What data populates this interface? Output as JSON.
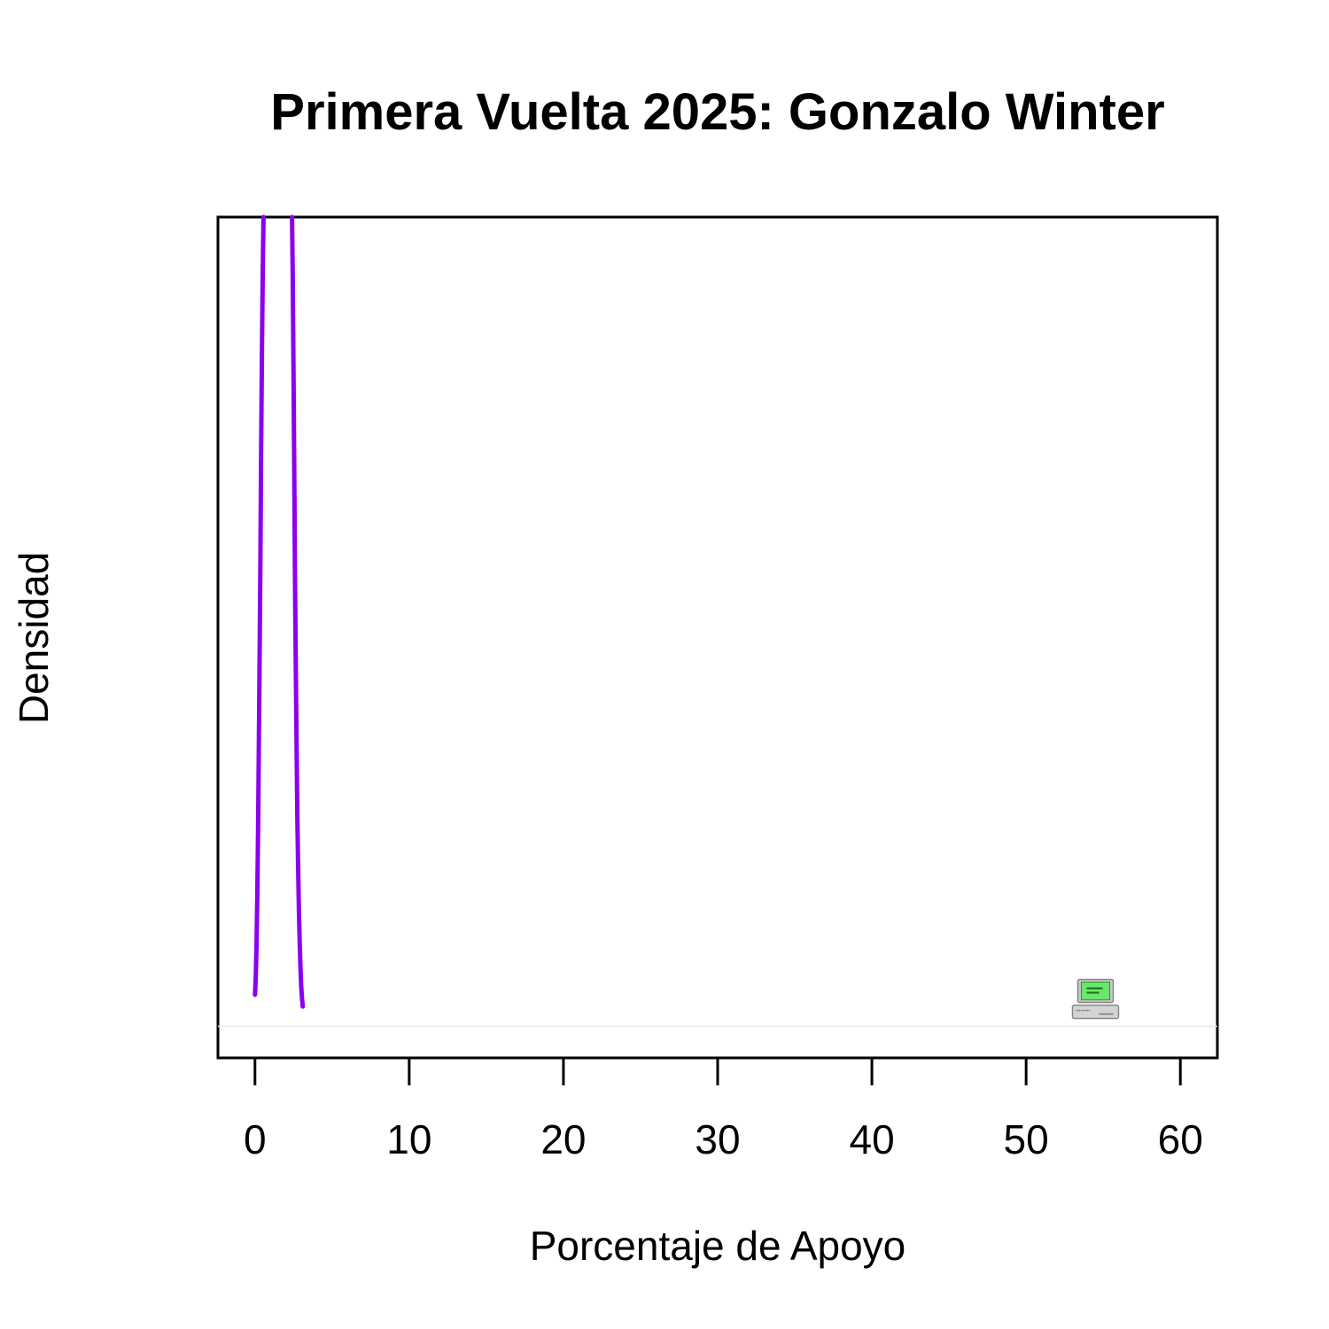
{
  "chart_data": {
    "type": "line",
    "title": "Primera Vuelta 2025: Gonzalo Winter",
    "xlabel": "Porcentaje de Apoyo",
    "ylabel": "Densidad",
    "xlim": [
      -2.4,
      62.4
    ],
    "ylim": [
      -0.008,
      0.205
    ],
    "xticks": [
      0,
      10,
      20,
      30,
      40,
      50,
      60
    ],
    "grid": false,
    "legend": "none",
    "series": [
      {
        "color": "#8B00EE",
        "x": [
          0.0,
          0.05,
          0.1,
          0.15,
          0.2,
          0.25,
          0.3,
          0.35,
          0.4,
          0.45,
          0.5,
          0.55
        ],
        "y": [
          0.008,
          0.012,
          0.02,
          0.033,
          0.05,
          0.07,
          0.093,
          0.118,
          0.145,
          0.17,
          0.19,
          0.205
        ]
      },
      {
        "color": "#8B00EE",
        "x": [
          2.4,
          2.45,
          2.5,
          2.55,
          2.6,
          2.65,
          2.7,
          2.75,
          2.8,
          2.85,
          2.9,
          2.95,
          3.0,
          3.05,
          3.1
        ],
        "y": [
          0.205,
          0.19,
          0.165,
          0.138,
          0.112,
          0.09,
          0.07,
          0.053,
          0.04,
          0.029,
          0.021,
          0.015,
          0.01,
          0.007,
          0.005
        ]
      }
    ],
    "baseline_y": 0,
    "baseline_color": "#e8e8e8",
    "marker": {
      "icon": "computer-icon",
      "x": 54.5,
      "y": 0.002
    }
  }
}
